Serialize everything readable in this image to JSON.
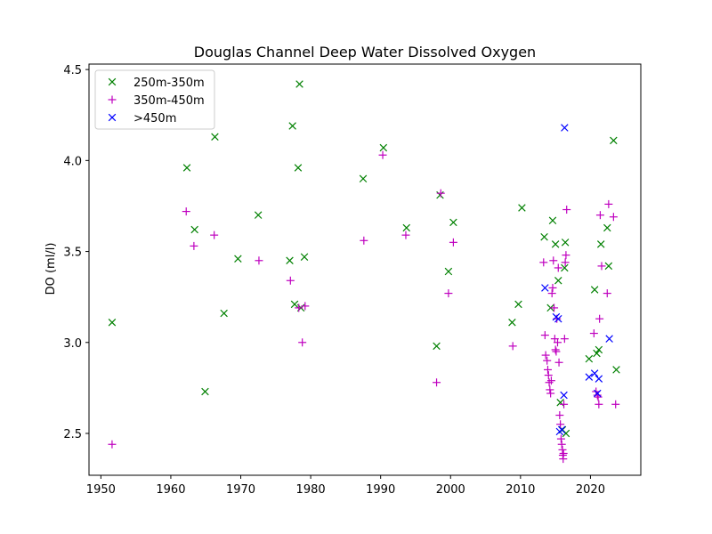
{
  "chart_data": {
    "type": "scatter",
    "title": "Douglas Channel Deep Water Dissolved Oxygen",
    "xlabel": "",
    "ylabel": "DO (ml/l)",
    "xlim": [
      1948.3,
      2027.2
    ],
    "ylim": [
      2.27,
      4.53
    ],
    "xticks": [
      1950,
      1960,
      1970,
      1980,
      1990,
      2000,
      2010,
      2020
    ],
    "yticks": [
      2.5,
      3.0,
      3.5,
      4.0,
      4.5
    ],
    "ytick_labels": [
      "2.5",
      "3.0",
      "3.5",
      "4.0",
      "4.5"
    ],
    "grid": false,
    "legend_position": "top-left",
    "series": [
      {
        "name": "250m-350m",
        "marker": "x",
        "color": "#008000",
        "points": [
          [
            1951.6,
            3.11
          ],
          [
            1962.3,
            3.96
          ],
          [
            1963.4,
            3.62
          ],
          [
            1964.9,
            2.73
          ],
          [
            1966.3,
            4.13
          ],
          [
            1967.6,
            3.16
          ],
          [
            1969.6,
            3.46
          ],
          [
            1972.5,
            3.7
          ],
          [
            1977.0,
            3.45
          ],
          [
            1977.4,
            4.19
          ],
          [
            1977.7,
            3.21
          ],
          [
            1978.2,
            3.96
          ],
          [
            1978.4,
            4.42
          ],
          [
            1978.6,
            3.19
          ],
          [
            1979.1,
            3.47
          ],
          [
            1987.5,
            3.9
          ],
          [
            1990.4,
            4.07
          ],
          [
            1993.7,
            3.63
          ],
          [
            1998.0,
            2.98
          ],
          [
            1998.5,
            3.81
          ],
          [
            1999.7,
            3.39
          ],
          [
            2000.4,
            3.66
          ],
          [
            2008.8,
            3.11
          ],
          [
            2009.7,
            3.21
          ],
          [
            2010.2,
            3.74
          ],
          [
            2013.4,
            3.58
          ],
          [
            2014.3,
            3.19
          ],
          [
            2014.6,
            3.67
          ],
          [
            2015.0,
            3.54
          ],
          [
            2015.4,
            3.34
          ],
          [
            2015.7,
            2.67
          ],
          [
            2016.0,
            2.52
          ],
          [
            2016.3,
            3.41
          ],
          [
            2016.4,
            3.55
          ],
          [
            2016.5,
            2.5
          ],
          [
            2020.6,
            3.29
          ],
          [
            2020.9,
            2.94
          ],
          [
            2021.2,
            2.96
          ],
          [
            2021.5,
            3.54
          ],
          [
            2022.4,
            3.63
          ],
          [
            2022.6,
            3.42
          ],
          [
            2023.3,
            4.11
          ],
          [
            2023.7,
            2.85
          ],
          [
            2019.8,
            2.91
          ]
        ]
      },
      {
        "name": "350m-450m",
        "marker": "+",
        "color": "#bf00bf",
        "points": [
          [
            1951.6,
            2.44
          ],
          [
            1962.2,
            3.72
          ],
          [
            1963.3,
            3.53
          ],
          [
            1966.2,
            3.59
          ],
          [
            1972.6,
            3.45
          ],
          [
            1977.1,
            3.34
          ],
          [
            1978.3,
            3.19
          ],
          [
            1978.8,
            3.0
          ],
          [
            1979.2,
            3.2
          ],
          [
            1987.6,
            3.56
          ],
          [
            1990.3,
            4.03
          ],
          [
            1993.6,
            3.59
          ],
          [
            1998.0,
            2.78
          ],
          [
            1998.6,
            3.82
          ],
          [
            1999.7,
            3.27
          ],
          [
            2000.4,
            3.55
          ],
          [
            2008.9,
            2.98
          ],
          [
            2013.3,
            3.44
          ],
          [
            2013.5,
            3.04
          ],
          [
            2013.6,
            2.93
          ],
          [
            2013.8,
            2.9
          ],
          [
            2013.9,
            2.85
          ],
          [
            2014.0,
            2.82
          ],
          [
            2014.1,
            2.78
          ],
          [
            2014.2,
            2.74
          ],
          [
            2014.3,
            2.72
          ],
          [
            2014.4,
            2.79
          ],
          [
            2014.5,
            3.27
          ],
          [
            2014.6,
            3.3
          ],
          [
            2014.7,
            3.45
          ],
          [
            2014.8,
            3.19
          ],
          [
            2014.9,
            3.02
          ],
          [
            2015.0,
            2.96
          ],
          [
            2015.1,
            2.95
          ],
          [
            2015.2,
            3.13
          ],
          [
            2015.3,
            3.0
          ],
          [
            2015.4,
            3.41
          ],
          [
            2015.5,
            2.89
          ],
          [
            2015.6,
            2.6
          ],
          [
            2015.7,
            2.55
          ],
          [
            2015.8,
            2.47
          ],
          [
            2015.9,
            2.44
          ],
          [
            2016.0,
            2.41
          ],
          [
            2016.05,
            2.38
          ],
          [
            2016.1,
            2.36
          ],
          [
            2016.15,
            2.39
          ],
          [
            2016.2,
            2.66
          ],
          [
            2016.3,
            3.02
          ],
          [
            2016.4,
            3.44
          ],
          [
            2016.5,
            3.48
          ],
          [
            2016.6,
            3.73
          ],
          [
            2020.5,
            3.05
          ],
          [
            2020.8,
            2.73
          ],
          [
            2021.0,
            2.71
          ],
          [
            2021.1,
            2.7
          ],
          [
            2021.2,
            2.66
          ],
          [
            2021.3,
            3.13
          ],
          [
            2021.4,
            3.7
          ],
          [
            2021.6,
            3.42
          ],
          [
            2022.4,
            3.27
          ],
          [
            2022.6,
            3.76
          ],
          [
            2023.3,
            3.69
          ],
          [
            2023.6,
            2.66
          ]
        ]
      },
      {
        "name": ">450m",
        "marker": "x",
        "color": "#0000ff",
        "points": [
          [
            2013.5,
            3.3
          ],
          [
            2015.1,
            3.14
          ],
          [
            2015.4,
            3.13
          ],
          [
            2015.6,
            2.51
          ],
          [
            2015.9,
            2.52
          ],
          [
            2016.2,
            2.71
          ],
          [
            2016.3,
            4.18
          ],
          [
            2019.8,
            2.81
          ],
          [
            2020.6,
            2.83
          ],
          [
            2021.0,
            2.72
          ],
          [
            2021.2,
            2.8
          ],
          [
            2022.7,
            3.02
          ]
        ]
      }
    ]
  }
}
